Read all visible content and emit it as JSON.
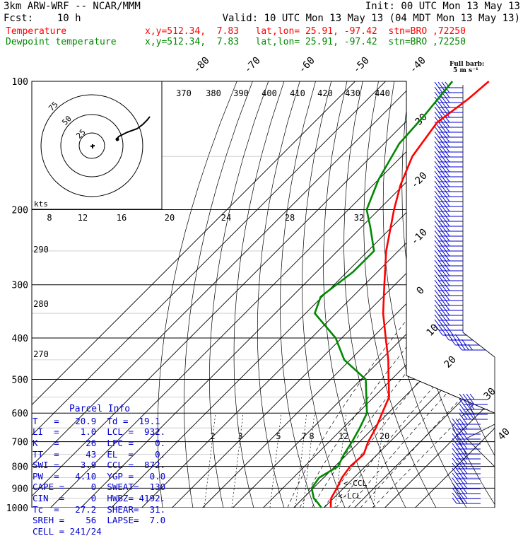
{
  "header": {
    "model": "3km ARW-WRF -- NCAR/MMM",
    "init": "Init: 00 UTC Mon 13 May 13",
    "fcst": "Fcst:    10 h",
    "valid": "Valid: 10 UTC Mon 13 May 13 (04 MDT Mon 13 May 13)",
    "temp_label": "Temperature",
    "temp_loc": "x,y=512.34,  7.83   lat,lon= 25.91, -97.42  stn=BRO ,72250",
    "dew_label": "Dewpoint temperature",
    "dew_loc": "x,y=512.34,  7.83   lat,lon= 25.91, -97.42  stn=BRO ,72250",
    "barb_key_1": "Full barb:",
    "barb_key_2": "5 m s⁻¹"
  },
  "colors": {
    "temperature": "#ff0000",
    "dewpoint": "#008800",
    "parcel_info": "#0000cc",
    "theta_labels": "#000000"
  },
  "chart_data": {
    "type": "line",
    "title": "",
    "pressure_levels": [
      100,
      200,
      300,
      400,
      500,
      600,
      700,
      800,
      900,
      1000
    ],
    "series": [
      {
        "name": "Temperature",
        "points": [
          [
            1000,
            22.2
          ],
          [
            980,
            21.0
          ],
          [
            950,
            19.2
          ],
          [
            900,
            17.8
          ],
          [
            850,
            16.0
          ],
          [
            800,
            15.0
          ],
          [
            750,
            15.5
          ],
          [
            700,
            12.8
          ],
          [
            650,
            10.8
          ],
          [
            600,
            8.0
          ],
          [
            550,
            5.0
          ],
          [
            500,
            -1.0
          ],
          [
            450,
            -7.5
          ],
          [
            400,
            -15.5
          ],
          [
            350,
            -24.5
          ],
          [
            300,
            -33.5
          ],
          [
            250,
            -44.0
          ],
          [
            200,
            -55.0
          ],
          [
            175,
            -61.0
          ],
          [
            150,
            -66.5
          ],
          [
            125,
            -69.5
          ],
          [
            110,
            -67.0
          ],
          [
            100,
            -66.0
          ]
        ]
      },
      {
        "name": "Dewpoint temperature",
        "points": [
          [
            1000,
            19.1
          ],
          [
            980,
            17.0
          ],
          [
            950,
            13.5
          ],
          [
            900,
            9.5
          ],
          [
            850,
            8.5
          ],
          [
            800,
            11.0
          ],
          [
            750,
            9.0
          ],
          [
            700,
            7.5
          ],
          [
            650,
            5.5
          ],
          [
            600,
            3.0
          ],
          [
            550,
            -2.5
          ],
          [
            500,
            -8.5
          ],
          [
            450,
            -22.0
          ],
          [
            400,
            -32.0
          ],
          [
            350,
            -47.0
          ],
          [
            320,
            -50.5
          ],
          [
            280,
            -48.0
          ],
          [
            250,
            -48.0
          ],
          [
            220,
            -57.0
          ],
          [
            200,
            -64.0
          ],
          [
            170,
            -70.0
          ],
          [
            140,
            -75.0
          ],
          [
            120,
            -76.0
          ],
          [
            100,
            -78.0
          ]
        ]
      }
    ],
    "temperature_ticks": [
      -80,
      -70,
      -60,
      -50,
      -40,
      -30,
      -20,
      -10,
      0,
      10,
      20,
      30,
      40
    ],
    "theta_top_labels": [
      "370",
      "380",
      "390",
      "400",
      "410",
      "420",
      "430",
      "440"
    ],
    "theta_left_labels": [
      "290",
      "280",
      "270"
    ],
    "mixing_ratio_top_labels": [
      "8",
      "12",
      "16",
      "20",
      "24",
      "28",
      "32"
    ],
    "mixing_ratio_low_labels": [
      "2",
      "3",
      "5",
      "7",
      "8",
      "12",
      "20"
    ],
    "lcl_label": "<-LCL",
    "ccl_label": "<-CCL",
    "hodograph_label": "kts",
    "hodograph_ring_labels": [
      "25",
      "50",
      "75"
    ]
  },
  "parcel_info": {
    "title": "Parcel Info",
    "rows": [
      "T   =   20.9  Td =  19.1",
      "LI  =    1.0  LCL =  932.",
      "K   =     26  LFC =    0.",
      "TT  =     43  EL  =    0.",
      "SWI =    3.9  CCL =  872.",
      "PW  =   4.10  YGP =   0.0",
      "CAPE =     0  SWEAT=  130",
      "CIN  =     0  HWBZ= 4192.",
      "Tc  =   27.2  SHEAR=  31.",
      "SREH =    56  LAPSE=  7.0",
      "CELL = 241/24"
    ]
  }
}
